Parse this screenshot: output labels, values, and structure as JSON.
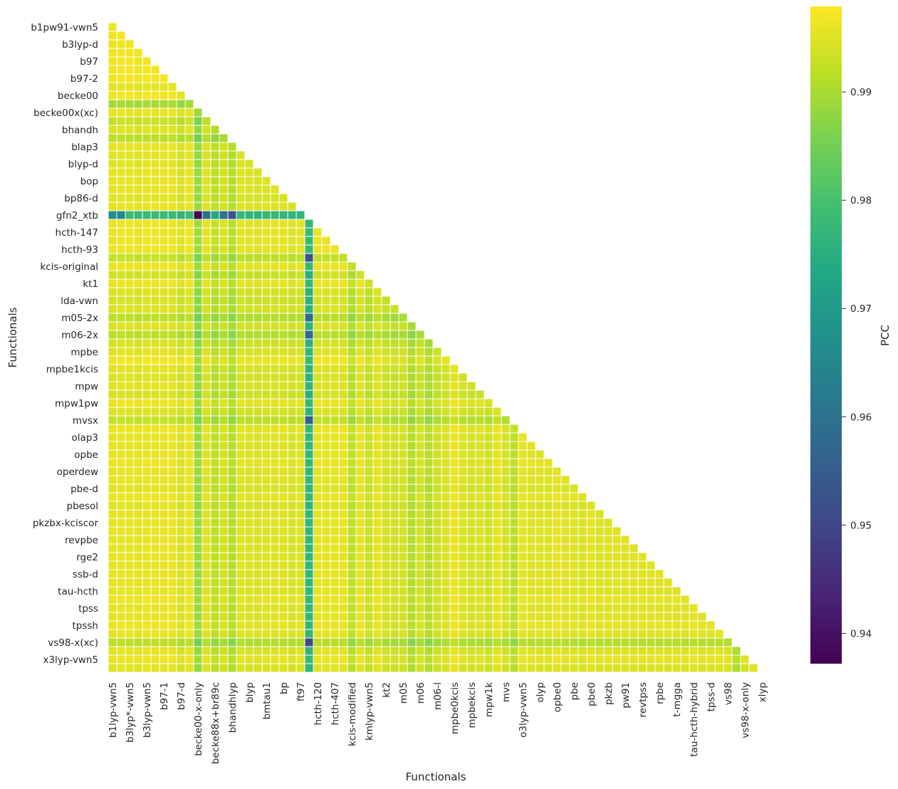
{
  "chart_data": {
    "type": "heatmap",
    "title": "",
    "xlabel": "Functionals",
    "ylabel": "Functionals",
    "colorbar_label": "PCC",
    "colormap": "viridis",
    "mask": "upper-triangle-including-diagonal",
    "vmin": 0.9372,
    "vmax": 0.9979,
    "colorbar_ticks": [
      "0.94",
      "0.95",
      "0.96",
      "0.97",
      "0.98",
      "0.99"
    ],
    "labels": [
      "b1lyp-vwn5",
      "b1pw91-vwn5",
      "b3lyp*-vwn5",
      "b3lyp-d",
      "b3lyp-vwn5",
      "b97",
      "b97-1",
      "b97-2",
      "b97-d",
      "becke00",
      "becke00-x-only",
      "becke00x(xc)",
      "becke88x+br89c",
      "bhandh",
      "bhandhlyp",
      "blap3",
      "blyp",
      "blyp-d",
      "bmtau1",
      "bop",
      "bp",
      "bp86-d",
      "ft97",
      "gfn2_xtb",
      "hcth-120",
      "hcth-147",
      "hcth-407",
      "hcth-93",
      "kcis-modified",
      "kcis-original",
      "kmlyp-vwn5",
      "kt1",
      "kt2",
      "lda-vwn",
      "m05",
      "m05-2x",
      "m06",
      "m06-2x",
      "m06-l",
      "mpbe",
      "mpbe0kcis",
      "mpbe1kcis",
      "mpbekcis",
      "mpw",
      "mpw1k",
      "mpw1pw",
      "mvs",
      "mvsx",
      "o3lyp-vwn5",
      "olap3",
      "olyp",
      "opbe",
      "opbe0",
      "operdew",
      "pbe",
      "pbe-d",
      "pbe0",
      "pbesol",
      "pkzb",
      "pkzbx-kciscor",
      "pw91",
      "revpbe",
      "revtpss",
      "rge2",
      "rpbe",
      "ssb-d",
      "t-mgga",
      "tau-hcth",
      "tau-hcth-hybrid",
      "tpss",
      "tpss-d",
      "tpssh",
      "vs98",
      "vs98-x(xc)",
      "vs98-x-only",
      "x3lyp-vwn5",
      "xlyp"
    ],
    "y_tick_labels_shown": [
      "b1pw91-vwn5",
      "b3lyp-d",
      "b97",
      "b97-2",
      "becke00",
      "becke00x(xc)",
      "bhandh",
      "blap3",
      "blyp-d",
      "bop",
      "bp86-d",
      "gfn2_xtb",
      "hcth-147",
      "hcth-93",
      "kcis-original",
      "kt1",
      "lda-vwn",
      "m05-2x",
      "m06-2x",
      "mpbe",
      "mpbe1kcis",
      "mpw",
      "mpw1pw",
      "mvsx",
      "olap3",
      "opbe",
      "operdew",
      "pbe-d",
      "pbesol",
      "pkzbx-kciscor",
      "revpbe",
      "rge2",
      "ssb-d",
      "tau-hcth",
      "tpss",
      "tpssh",
      "vs98-x(xc)",
      "x3lyp-vwn5"
    ],
    "x_tick_labels_shown": [
      "b1lyp-vwn5",
      "b3lyp*-vwn5",
      "b3lyp-vwn5",
      "b97-1",
      "b97-d",
      "becke00-x-only",
      "becke88x+br89c",
      "bhandhlyp",
      "blyp",
      "bmtau1",
      "bp",
      "ft97",
      "hcth-120",
      "hcth-407",
      "kcis-modified",
      "kmlyp-vwn5",
      "kt2",
      "m05",
      "m06",
      "m06-l",
      "mpbe0kcis",
      "mpbekcis",
      "mpw1k",
      "mvs",
      "o3lyp-vwn5",
      "olyp",
      "opbe0",
      "pbe",
      "pbe0",
      "pkzb",
      "pw91",
      "revtpss",
      "rpbe",
      "t-mgga",
      "tau-hcth-hybrid",
      "tpss-d",
      "vs98",
      "vs98-x-only",
      "xlyp"
    ],
    "value_model": {
      "description": "PCC(i,j) = base - (dev[i] + dev[j]) unless overridden by pair_overrides; values estimated from cell colors",
      "base": 0.999,
      "dev": [
        0.0015,
        0.001,
        0.001,
        0.0015,
        0.001,
        0.001,
        0.001,
        0.001,
        0.0025,
        0.001,
        0.008,
        0.002,
        0.005,
        0.003,
        0.006,
        0.002,
        0.0025,
        0.0025,
        0.002,
        0.002,
        0.002,
        0.0025,
        0.002,
        0.02,
        0.0015,
        0.0015,
        0.0015,
        0.0015,
        0.005,
        0.0015,
        0.004,
        0.0015,
        0.003,
        0.0035,
        0.003,
        0.006,
        0.003,
        0.006,
        0.0035,
        0.0025,
        0.001,
        0.0025,
        0.003,
        0.0025,
        0.0035,
        0.0015,
        0.003,
        0.005,
        0.0015,
        0.002,
        0.002,
        0.002,
        0.0015,
        0.002,
        0.002,
        0.0025,
        0.0015,
        0.0025,
        0.002,
        0.002,
        0.002,
        0.002,
        0.002,
        0.002,
        0.002,
        0.002,
        0.002,
        0.002,
        0.0015,
        0.002,
        0.002,
        0.0015,
        0.002,
        0.006,
        0.0025,
        0.0015,
        0.0025
      ],
      "pair_overrides": [
        {
          "row": "gfn2_xtb",
          "col": "becke00-x-only",
          "value": 0.937
        },
        {
          "row": "gfn2_xtb",
          "col": "becke00x(xc)",
          "value": 0.96
        },
        {
          "row": "gfn2_xtb",
          "col": "bhandh",
          "value": 0.96
        },
        {
          "row": "gfn2_xtb",
          "col": "bhandhlyp",
          "value": 0.953
        },
        {
          "row": "gfn2_xtb",
          "col": "b1lyp-vwn5",
          "value": 0.967
        },
        {
          "row": "gfn2_xtb",
          "col": "b1pw91-vwn5",
          "value": 0.965
        },
        {
          "row": "kcis-modified",
          "col": "gfn2_xtb",
          "value": 0.953
        },
        {
          "row": "m05-2x",
          "col": "gfn2_xtb",
          "value": 0.958
        },
        {
          "row": "m06-2x",
          "col": "gfn2_xtb",
          "value": 0.958
        },
        {
          "row": "mvsx",
          "col": "gfn2_xtb",
          "value": 0.956
        },
        {
          "row": "vs98-x(xc)",
          "col": "gfn2_xtb",
          "value": 0.95
        }
      ]
    }
  }
}
